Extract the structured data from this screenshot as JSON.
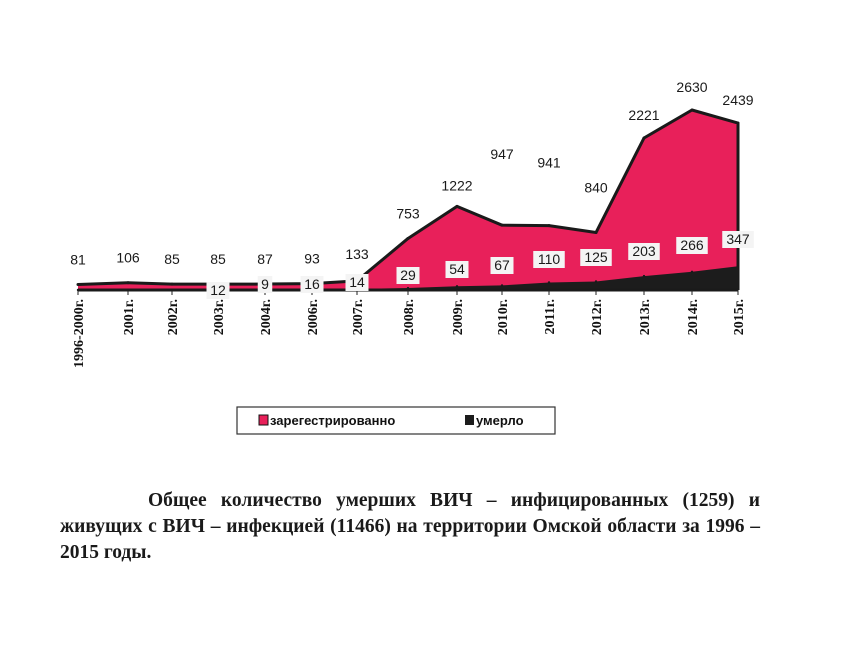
{
  "chart_data": {
    "type": "area",
    "categories": [
      "1996-2000г.",
      "2001г.",
      "2002г.",
      "2003г.",
      "2004г.",
      "2006г.",
      "2007г.",
      "2008г.",
      "2009г.",
      "2010г.",
      "2011г.",
      "2012г.",
      "2013г.",
      "2014г.",
      "2015г."
    ],
    "series": [
      {
        "name": "зарегестрированно",
        "values": [
          81,
          106,
          85,
          85,
          87,
          93,
          133,
          753,
          1222,
          947,
          941,
          840,
          2221,
          2630,
          2439
        ],
        "color": "#e8205a"
      },
      {
        "name": "умерло",
        "values": [
          0,
          0,
          0,
          12,
          9,
          16,
          14,
          29,
          54,
          67,
          110,
          125,
          203,
          266,
          347
        ],
        "color": "#1c1c1c"
      }
    ],
    "value_labels": {
      "registered": [
        "81",
        "106",
        "85",
        "85",
        "87",
        "93",
        "133",
        "753",
        "1222",
        "947",
        "941",
        "840",
        "2221",
        "2630",
        "2439"
      ],
      "died": [
        "",
        "",
        "",
        "12",
        "9",
        "16",
        "14",
        "29",
        "54",
        "67",
        "110",
        "125",
        "203",
        "266",
        "347"
      ]
    },
    "legend_position": "bottom",
    "grid": false
  },
  "legend": {
    "registered_label": "зарегестрированно",
    "died_label": "умерло"
  },
  "caption": "Общее количество умерших ВИЧ – инфицированных (1259) и живущих с ВИЧ – инфекцией (11466) на территории Омской области за 1996  – 2015 годы."
}
